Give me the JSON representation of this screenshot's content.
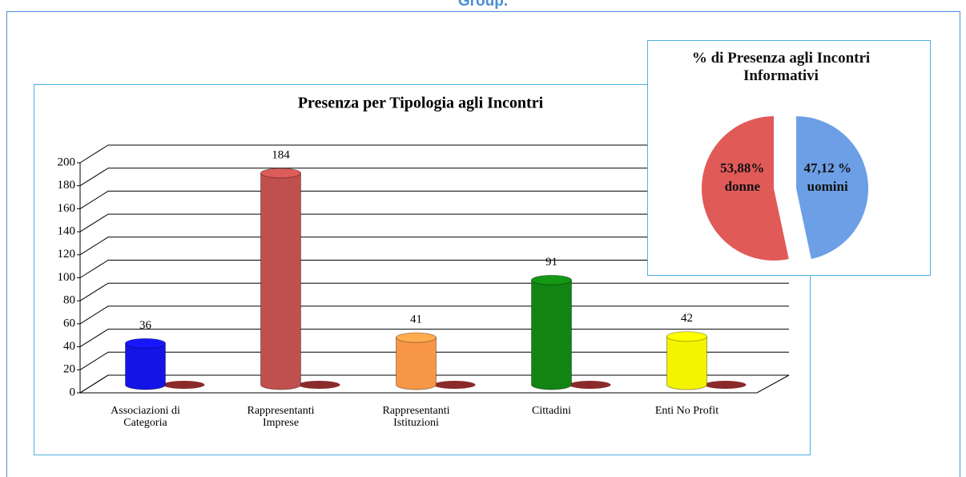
{
  "header": "Group.",
  "chart_data": [
    {
      "type": "bar",
      "title": "Presenza per Tipologia agli Incontri",
      "categories": [
        "Associazioni di Categoria",
        "Rappresentanti Imprese",
        "Rappresentanti Istituzioni",
        "Cittadini",
        "Enti No Profit"
      ],
      "values": [
        36,
        184,
        41,
        91,
        42
      ],
      "colors": [
        "#1414e6",
        "#c0504d",
        "#f79646",
        "#128412",
        "#f4f400"
      ],
      "ylim": [
        0,
        200
      ],
      "yticks": [
        0,
        20,
        40,
        60,
        80,
        100,
        120,
        140,
        160,
        180,
        200
      ],
      "grid": true
    },
    {
      "type": "pie",
      "title": "% di Presenza agli Incontri Informativi",
      "categories": [
        "donne",
        "uomini"
      ],
      "values": [
        53.88,
        47.12
      ],
      "value_labels": [
        "53,88%",
        "47,12 %"
      ],
      "colors": [
        "#e05a58",
        "#6c9fe6"
      ]
    }
  ]
}
